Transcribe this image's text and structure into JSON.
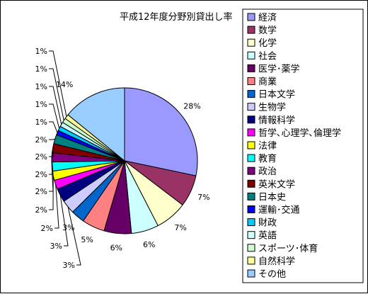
{
  "chart_data": {
    "type": "pie",
    "title": "平成12年度分野別貸出し率",
    "legend_position": "right",
    "categories": [
      "経済",
      "数学",
      "化学",
      "社会",
      "医学･薬学",
      "商業",
      "日本文学",
      "生物学",
      "情報科学",
      "哲学､心理学､倫理学",
      "法律",
      "教育",
      "政治",
      "英米文学",
      "日本史",
      "運輸･交通",
      "財政",
      "英語",
      "スポーツ･体育",
      "自然科学",
      "その他"
    ],
    "values": [
      28,
      7,
      7,
      6,
      6,
      5,
      3,
      3,
      3,
      2,
      2,
      2,
      2,
      2,
      2,
      1,
      1,
      1,
      1,
      1,
      14
    ],
    "labels": [
      "28%",
      "7%",
      "7%",
      "6%",
      "6%",
      "5%",
      "3%",
      "3%",
      "3%",
      "2%",
      "2%",
      "2%",
      "2%",
      "2%",
      "2%",
      "1%",
      "1%",
      "1%",
      "1%",
      "1%",
      "14%"
    ],
    "colors": [
      "#9999FF",
      "#993366",
      "#FFFFCC",
      "#CCFFFF",
      "#660066",
      "#FF8080",
      "#0066CC",
      "#CCCCFF",
      "#000080",
      "#FF00FF",
      "#FFFF00",
      "#00FFFF",
      "#800080",
      "#800000",
      "#008080",
      "#0000FF",
      "#00CCFF",
      "#CCFFFF",
      "#CCFFCC",
      "#FFFF99",
      "#99CCFF"
    ]
  }
}
